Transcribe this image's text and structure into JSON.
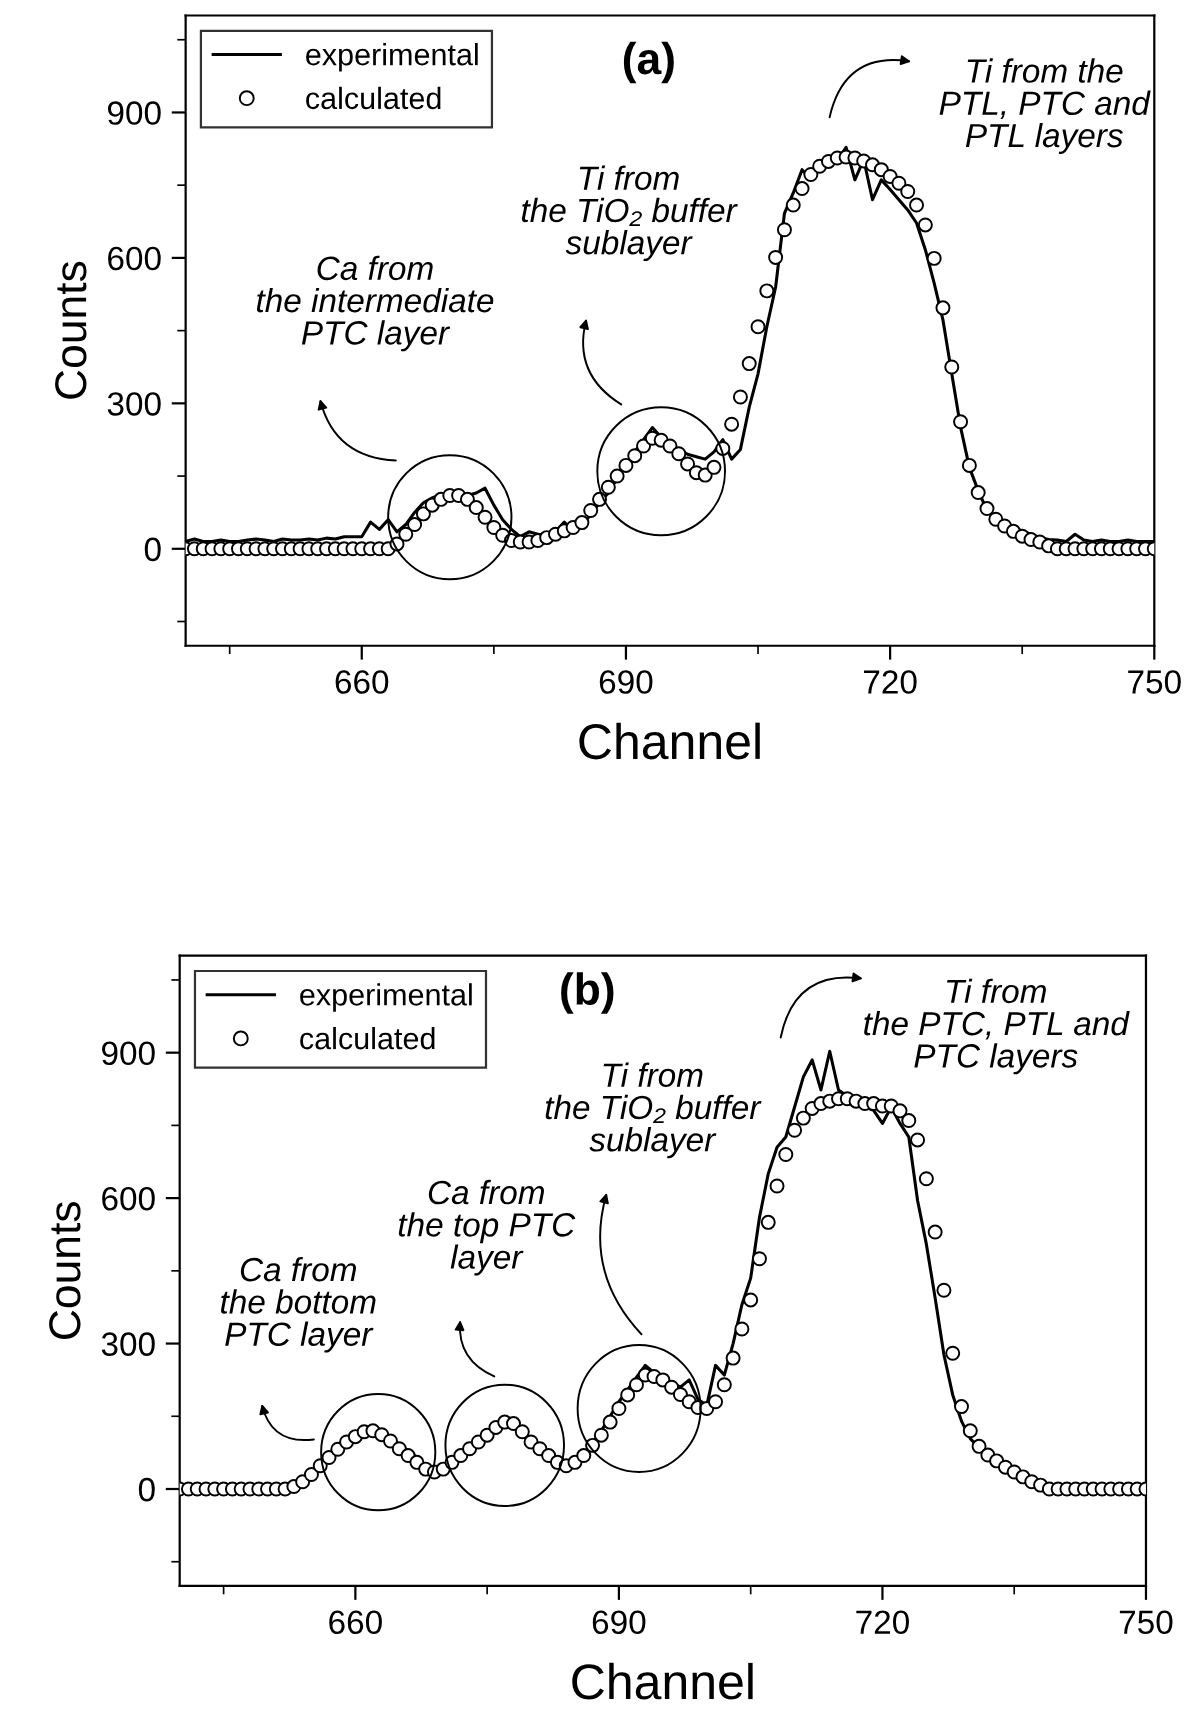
{
  "chart_data": [
    {
      "type": "line",
      "xlabel": "Channel",
      "ylabel": "Counts",
      "xlim": [
        640,
        750
      ],
      "ylim": [
        -200,
        1100
      ],
      "xticks": [
        660,
        690,
        720,
        750
      ],
      "yticks": [
        0,
        300,
        600,
        900
      ],
      "grid": false,
      "legend": "top left",
      "x": [
        640,
        641,
        642,
        643,
        644,
        645,
        646,
        647,
        648,
        649,
        650,
        651,
        652,
        653,
        654,
        655,
        656,
        657,
        658,
        659,
        660,
        661,
        662,
        663,
        664,
        665,
        666,
        667,
        668,
        669,
        670,
        671,
        672,
        673,
        674,
        675,
        676,
        677,
        678,
        679,
        680,
        681,
        682,
        683,
        684,
        685,
        686,
        687,
        688,
        689,
        690,
        691,
        692,
        693,
        694,
        695,
        696,
        697,
        698,
        699,
        700,
        701,
        702,
        703,
        704,
        705,
        706,
        707,
        708,
        709,
        710,
        711,
        712,
        713,
        714,
        715,
        716,
        717,
        718,
        719,
        720,
        721,
        722,
        723,
        724,
        725,
        726,
        727,
        728,
        729,
        730,
        731,
        732,
        733,
        734,
        735,
        736,
        737,
        738,
        739,
        740,
        741,
        742,
        743,
        744,
        745,
        746,
        747,
        748,
        749,
        750
      ],
      "series": [
        {
          "name": "experimental",
          "color": "#000000",
          "marker": "none",
          "line_style": "solid",
          "values": [
            15,
            20,
            15,
            15,
            18,
            15,
            15,
            18,
            20,
            18,
            15,
            20,
            18,
            18,
            20,
            18,
            22,
            20,
            25,
            25,
            25,
            55,
            40,
            60,
            35,
            50,
            75,
            95,
            105,
            112,
            115,
            112,
            110,
            115,
            125,
            90,
            60,
            40,
            25,
            35,
            30,
            25,
            35,
            55,
            35,
            50,
            70,
            95,
            115,
            145,
            175,
            200,
            225,
            250,
            230,
            215,
            205,
            195,
            190,
            185,
            200,
            225,
            185,
            205,
            292,
            361,
            458,
            540,
            692,
            734,
            782,
            761,
            789,
            792,
            800,
            828,
            761,
            803,
            720,
            761,
            741,
            720,
            699,
            672,
            617,
            548,
            472,
            361,
            251,
            168,
            120,
            79,
            61,
            51,
            44,
            37,
            30,
            23,
            19,
            18,
            15,
            30,
            18,
            15,
            18,
            15,
            15,
            18,
            15,
            15,
            15
          ]
        },
        {
          "name": "calculated",
          "type": "scatter",
          "color": "#000000",
          "marker": "circle",
          "values": [
            0,
            0,
            0,
            0,
            0,
            0,
            0,
            0,
            0,
            0,
            0,
            0,
            0,
            0,
            0,
            0,
            0,
            0,
            0,
            0,
            0,
            0,
            0,
            0,
            10,
            30,
            50,
            72,
            90,
            102,
            110,
            110,
            102,
            85,
            65,
            44,
            28,
            17,
            14,
            14,
            17,
            23,
            30,
            37,
            44,
            54,
            79,
            102,
            127,
            150,
            172,
            192,
            212,
            228,
            224,
            212,
            196,
            175,
            157,
            152,
            168,
            207,
            257,
            313,
            382,
            458,
            532,
            601,
            658,
            709,
            743,
            772,
            789,
            799,
            806,
            808,
            806,
            800,
            792,
            782,
            768,
            754,
            737,
            709,
            668,
            599,
            497,
            375,
            262,
            172,
            116,
            83,
            61,
            47,
            36,
            26,
            19,
            14,
            6,
            0,
            0,
            0,
            0,
            0,
            0,
            0,
            0,
            0,
            0,
            0,
            0
          ]
        }
      ],
      "annotations": [
        "(a)",
        "Ca from\nthe intermediate\nPTC layer",
        "Ti from\nthe TiO₂ buffer\nsublayer",
        "Ti from the\nPTL, PTC and\nPTL layers"
      ]
    },
    {
      "type": "line",
      "xlabel": "Channel",
      "ylabel": "Counts",
      "xlim": [
        640,
        750
      ],
      "ylim": [
        -200,
        1100
      ],
      "xticks": [
        660,
        690,
        720,
        750
      ],
      "yticks": [
        0,
        300,
        600,
        900
      ],
      "grid": false,
      "legend": "top left",
      "x": [
        640,
        641,
        642,
        643,
        644,
        645,
        646,
        647,
        648,
        649,
        650,
        651,
        652,
        653,
        654,
        655,
        656,
        657,
        658,
        659,
        660,
        661,
        662,
        663,
        664,
        665,
        666,
        667,
        668,
        669,
        670,
        671,
        672,
        673,
        674,
        675,
        676,
        677,
        678,
        679,
        680,
        681,
        682,
        683,
        684,
        685,
        686,
        687,
        688,
        689,
        690,
        691,
        692,
        693,
        694,
        695,
        696,
        697,
        698,
        699,
        700,
        701,
        702,
        703,
        704,
        705,
        706,
        707,
        708,
        709,
        710,
        711,
        712,
        713,
        714,
        715,
        716,
        717,
        718,
        719,
        720,
        721,
        722,
        723,
        724,
        725,
        726,
        727,
        728,
        729,
        730,
        731,
        732,
        733,
        734,
        735,
        736,
        737,
        738,
        739,
        740,
        741,
        742,
        743,
        744,
        745,
        746,
        747,
        748,
        749,
        750
      ],
      "series": [
        {
          "name": "experimental",
          "color": "#000000",
          "marker": "none",
          "line_style": "solid",
          "values": [
            0,
            0,
            2,
            0,
            0,
            5,
            0,
            2,
            8,
            0,
            2,
            5,
            3,
            5,
            15,
            30,
            48,
            65,
            82,
            97,
            110,
            118,
            118,
            110,
            100,
            90,
            80,
            65,
            45,
            38,
            40,
            55,
            70,
            85,
            100,
            115,
            125,
            135,
            128,
            110,
            100,
            90,
            70,
            55,
            45,
            55,
            70,
            95,
            120,
            150,
            180,
            205,
            230,
            255,
            240,
            230,
            220,
            210,
            225,
            185,
            172,
            255,
            235,
            300,
            380,
            435,
            560,
            650,
            705,
            726,
            788,
            850,
            885,
            823,
            903,
            823,
            810,
            795,
            788,
            781,
            754,
            788,
            754,
            726,
            595,
            505,
            394,
            277,
            194,
            140,
            104,
            85,
            70,
            58,
            45,
            35,
            25,
            15,
            8,
            3,
            0,
            0,
            0,
            2,
            0,
            0,
            0,
            0,
            5,
            0,
            0
          ]
        },
        {
          "name": "calculated",
          "type": "scatter",
          "color": "#000000",
          "marker": "circle",
          "values": [
            0,
            0,
            0,
            0,
            0,
            0,
            0,
            0,
            0,
            0,
            0,
            0,
            0,
            5,
            15,
            30,
            48,
            65,
            82,
            97,
            108,
            118,
            120,
            112,
            99,
            83,
            69,
            55,
            41,
            35,
            41,
            55,
            69,
            83,
            97,
            111,
            127,
            138,
            135,
            118,
            97,
            83,
            69,
            55,
            48,
            55,
            69,
            90,
            111,
            138,
            166,
            194,
            215,
            235,
            232,
            225,
            210,
            195,
            180,
            168,
            166,
            180,
            215,
            270,
            330,
            390,
            475,
            550,
            625,
            690,
            740,
            765,
            785,
            795,
            800,
            805,
            805,
            800,
            795,
            795,
            790,
            790,
            780,
            760,
            720,
            640,
            530,
            410,
            280,
            170,
            120,
            88,
            70,
            58,
            45,
            35,
            25,
            15,
            8,
            0,
            0,
            0,
            0,
            0,
            0,
            0,
            0,
            0,
            0,
            0,
            0
          ]
        }
      ],
      "annotations": [
        "(b)",
        "Ca from\nthe bottom\nPTC layer",
        "Ca from\nthe top PTC\nlayer",
        "Ti from\nthe TiO₂ buffer\nsublayer",
        "Ti from\nthe PTC, PTL and\nPTC layers"
      ]
    }
  ]
}
